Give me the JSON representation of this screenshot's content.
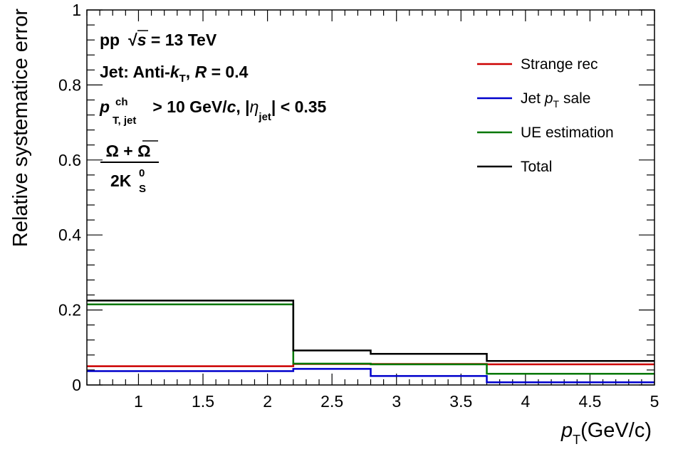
{
  "chart_data": {
    "type": "line",
    "step": true,
    "xlabel": {
      "main": "p",
      "sub": "T",
      "rest": "(GeV/c)"
    },
    "ylabel": "Relative systematice error",
    "xlim": [
      0.6,
      5.0
    ],
    "ylim": [
      0,
      1
    ],
    "xticks": [
      1,
      1.5,
      2,
      2.5,
      3,
      3.5,
      4,
      4.5,
      5
    ],
    "xtick_labels": [
      "1",
      "1.5",
      "2",
      "2.5",
      "3",
      "3.5",
      "4",
      "4.5",
      "5"
    ],
    "yticks": [
      0,
      0.2,
      0.4,
      0.6,
      0.8,
      1
    ],
    "ytick_labels": [
      "0",
      "0.2",
      "0.4",
      "0.6",
      "0.8",
      "1"
    ],
    "bin_edges": [
      0.6,
      2.2,
      2.8,
      3.7,
      5.0
    ],
    "series": [
      {
        "name": "Strange rec",
        "color": "#cc0000",
        "values": [
          0.05,
          0.056,
          0.056,
          0.055
        ]
      },
      {
        "name": "Jet p_T sale",
        "legend": {
          "pre": "Jet ",
          "italic": "p",
          "sub": "T",
          "post": " sale"
        },
        "color": "#0000cc",
        "values": [
          0.037,
          0.043,
          0.024,
          0.007
        ]
      },
      {
        "name": "UE estimation",
        "color": "#007700",
        "values": [
          0.215,
          0.057,
          0.055,
          0.03
        ]
      },
      {
        "name": "Total",
        "color": "#000000",
        "values": [
          0.225,
          0.092,
          0.083,
          0.064
        ]
      }
    ],
    "legend_position": "top-right",
    "grid": false,
    "annotations": {
      "line1": {
        "pp": "pp",
        "sqrt": "√",
        "s": "s",
        "rest": " = 13 TeV"
      },
      "line2": {
        "pre": "Jet: Anti-",
        "k": "k",
        "ksub": "T",
        "comma": ",  ",
        "R": "R",
        "rest": " = 0.4"
      },
      "line3": {
        "p": "p",
        "sup": "ch",
        "sub": "T, jet",
        "mid": " > 10 GeV/",
        "c": "c",
        "mid2": ", |",
        "eta": "η",
        "etasub": "jet",
        "end": "| < 0.35"
      },
      "ratio": {
        "num": "Ω + Ω",
        "den_pre": "2K",
        "den_sup": "0",
        "den_sub": "S"
      }
    }
  }
}
